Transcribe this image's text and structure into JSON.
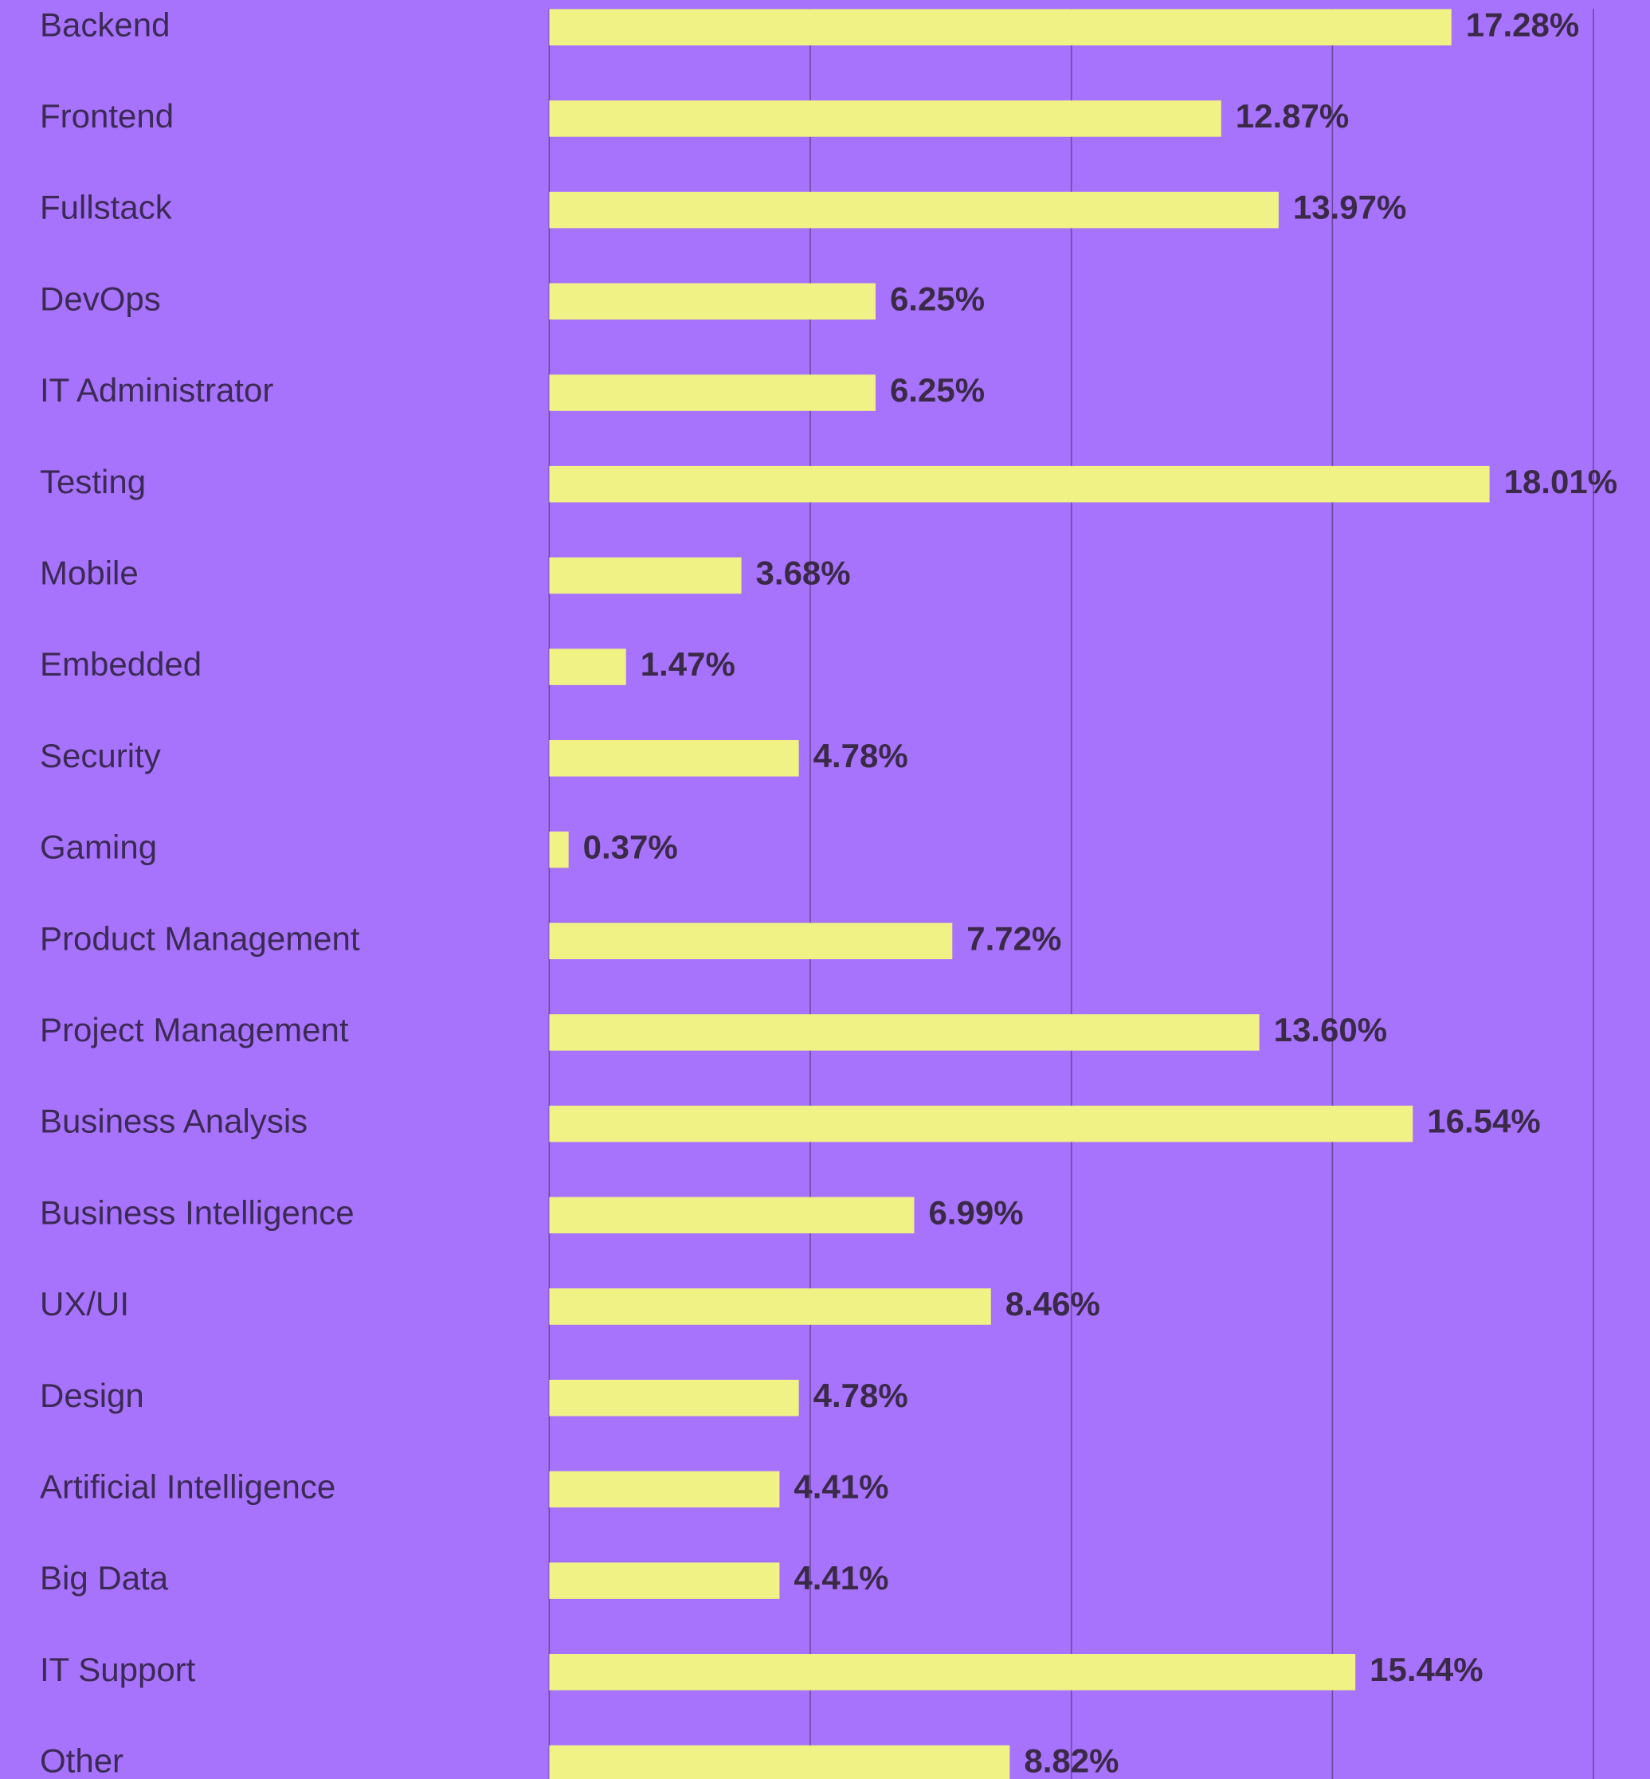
{
  "chart_data": {
    "type": "bar",
    "orientation": "horizontal",
    "categories": [
      "Backend",
      "Frontend",
      "Fullstack",
      "DevOps",
      "IT Administrator",
      "Testing",
      "Mobile",
      "Embedded",
      "Security",
      "Gaming",
      "Product Management",
      "Project Management",
      "Business Analysis",
      "Business Intelligence",
      "UX/UI",
      "Design",
      "Artificial Intelligence",
      "Big Data",
      "IT Support",
      "Other"
    ],
    "values": [
      17.28,
      12.87,
      13.97,
      6.25,
      6.25,
      18.01,
      3.68,
      1.47,
      4.78,
      0.37,
      7.72,
      13.6,
      16.54,
      6.99,
      8.46,
      4.78,
      4.41,
      4.41,
      15.44,
      8.82
    ],
    "value_labels": [
      "17.28%",
      "12.87%",
      "13.97%",
      "6.25%",
      "6.25%",
      "18.01%",
      "3.68%",
      "1.47%",
      "4.78%",
      "0.37%",
      "7.72%",
      "13.60%",
      "16.54%",
      "6.99%",
      "8.46%",
      "4.78%",
      "4.41%",
      "4.41%",
      "15.44%",
      "8.82%"
    ],
    "color": "#f0f285",
    "xlim": [
      0,
      20
    ],
    "xticks": [
      0,
      5,
      10,
      15,
      20
    ],
    "grid": true
  }
}
